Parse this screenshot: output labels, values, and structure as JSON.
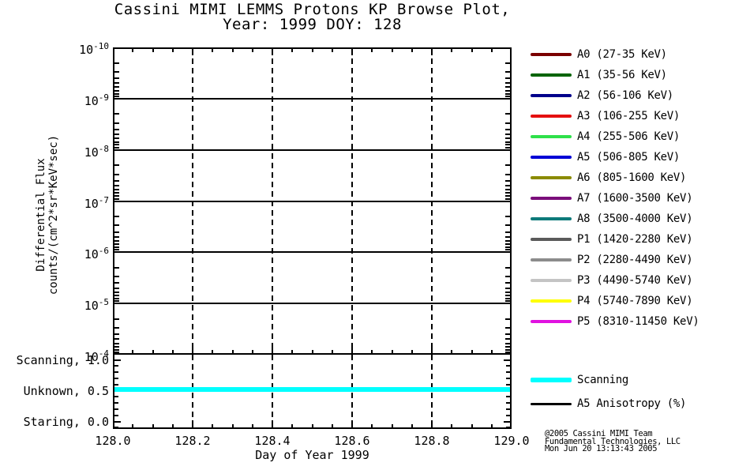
{
  "title": {
    "line1": "Cassini MIMI LEMMS Protons KP Browse Plot,",
    "line2": "Year: 1999 DOY: 128"
  },
  "chart_data": {
    "type": "line",
    "title": "Cassini MIMI LEMMS Protons KP Browse Plot, Year: 1999 DOY: 128",
    "x_axis": {
      "label": "Day of Year 1999",
      "min": 128.0,
      "max": 129.0,
      "major_ticks": [
        128.0,
        128.2,
        128.4,
        128.6,
        128.8,
        129.0
      ],
      "tick_labels": [
        "128.0",
        "128.2",
        "128.4",
        "128.6",
        "128.8",
        "129.0"
      ],
      "minor_tick_step": 0.05,
      "grid_style": "dashed"
    },
    "y_axis_main": {
      "label_lines": [
        "Differential Flux",
        "counts/(cm^2*sr*KeV*sec)"
      ],
      "scale": "log",
      "tick_exponents": [
        -10,
        -9,
        -8,
        -7,
        -6,
        -5,
        -4
      ],
      "top_value": "1e-10",
      "bottom_value": "1e-4",
      "grid_style": "solid"
    },
    "y_axis_panel": {
      "levels": [
        {
          "label": "Scanning, 1.0",
          "value": 1.0
        },
        {
          "label": "Unknown, 0.5",
          "value": 0.5
        },
        {
          "label": "Staring, 0.0",
          "value": 0.0
        }
      ]
    },
    "flux_series_plotted": [],
    "series": [
      {
        "name": "Scanning (spacecraft mode)",
        "color": "#00FFFF",
        "panel": "mode",
        "x": [
          128.0,
          129.0
        ],
        "y": [
          0.5,
          0.5
        ],
        "meaning": "Unknown, 0.5 for entire day"
      }
    ],
    "legend_position": "right"
  },
  "legend": {
    "channels": [
      {
        "label": "A0 (27-35 KeV)",
        "color": "#7A0000"
      },
      {
        "label": "A1 (35-56 KeV)",
        "color": "#006400"
      },
      {
        "label": "A2 (56-106 KeV)",
        "color": "#00008B"
      },
      {
        "label": "A3 (106-255 KeV)",
        "color": "#E51010"
      },
      {
        "label": "A4 (255-506 KeV)",
        "color": "#2EE04A"
      },
      {
        "label": "A5 (506-805 KeV)",
        "color": "#0000D6"
      },
      {
        "label": "A6 (805-1600 KeV)",
        "color": "#8B8B00"
      },
      {
        "label": "A7 (1600-3500 KeV)",
        "color": "#7A0E7A"
      },
      {
        "label": "A8 (3500-4000 KeV)",
        "color": "#0E7A7A"
      },
      {
        "label": "P1 (1420-2280 KeV)",
        "color": "#5A5A5A"
      },
      {
        "label": "P2 (2280-4490 KeV)",
        "color": "#8C8C8C"
      },
      {
        "label": "P3 (4490-5740 KeV)",
        "color": "#C4C4C4"
      },
      {
        "label": "P4 (5740-7890 KeV)",
        "color": "#FFFF00"
      },
      {
        "label": "P5 (8310-11450 KeV)",
        "color": "#E012E0"
      }
    ],
    "extras": [
      {
        "label": "Scanning",
        "color": "#00FFFF",
        "thick": true
      },
      {
        "label": "A5 Anisotropy (%)",
        "color": "#000000",
        "thick": false
      }
    ]
  },
  "footer": {
    "credit_line1": "@2005 Cassini MIMI Team",
    "credit_line2": "Fundamental Technologies, LLC",
    "credit_line3": "Mon Jun 20 13:13:43 2005"
  }
}
